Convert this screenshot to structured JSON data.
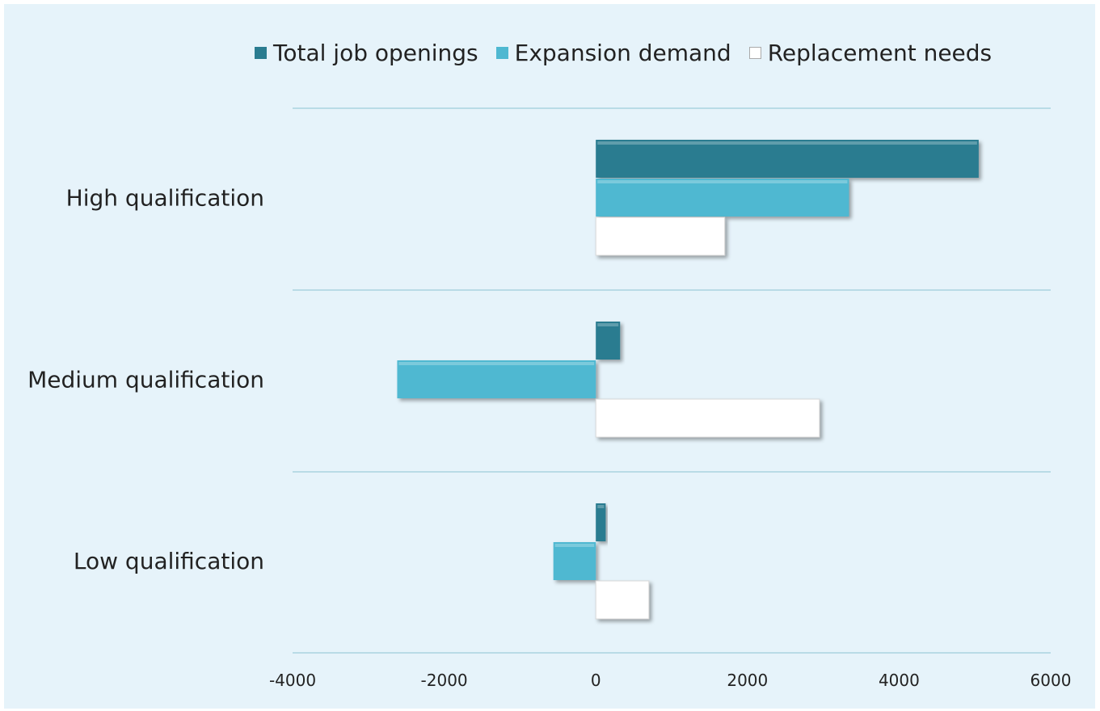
{
  "chart_data": {
    "type": "bar",
    "orientation": "horizontal",
    "categories": [
      "High qualification",
      "Medium qualification",
      "Low qualification"
    ],
    "series": [
      {
        "name": "Total job openings",
        "values": [
          5050,
          320,
          130
        ],
        "color": "#2a7c90"
      },
      {
        "name": "Expansion demand",
        "values": [
          3340,
          -2620,
          -560
        ],
        "color": "#4fb8d1"
      },
      {
        "name": "Replacement needs",
        "values": [
          1700,
          2950,
          700
        ],
        "color": "#ffffff"
      }
    ],
    "x_ticks": [
      "-4000",
      "-2000",
      "0",
      "2000",
      "4000",
      "6000"
    ],
    "xlim": [
      -4000,
      6000
    ],
    "grid": true,
    "legend_position": "top"
  }
}
